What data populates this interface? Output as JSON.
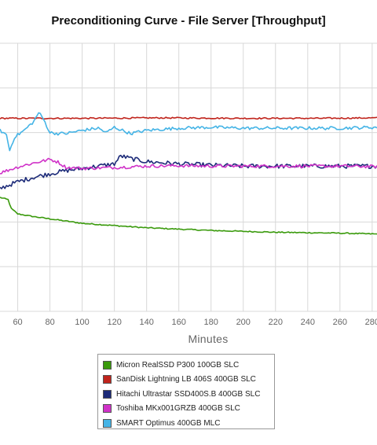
{
  "chart_data": {
    "type": "line",
    "title": "Preconditioning Curve - File Server [Throughput]",
    "xlabel": "Minutes",
    "ylabel": "",
    "xlim": [
      49,
      283
    ],
    "x_ticks": [
      60,
      80,
      100,
      120,
      140,
      160,
      180,
      200,
      220,
      240,
      260,
      280
    ],
    "ylim": [
      0,
      6
    ],
    "grid": true,
    "legend_position": "bottom",
    "series": [
      {
        "name": "Micron RealSSD P300 100GB SLC",
        "color": "#3a9a0c",
        "x": [
          49,
          54,
          56,
          60,
          70,
          80,
          90,
          100,
          120,
          140,
          160,
          180,
          200,
          220,
          240,
          260,
          283
        ],
        "y": [
          2.55,
          2.5,
          2.3,
          2.18,
          2.12,
          2.07,
          2.02,
          1.97,
          1.92,
          1.87,
          1.84,
          1.81,
          1.79,
          1.77,
          1.76,
          1.75,
          1.73
        ],
        "noise": 0.012
      },
      {
        "name": "SanDisk Lightning LB 406S 400GB SLC",
        "color": "#c0241c",
        "x": [
          49,
          100,
          150,
          200,
          250,
          283
        ],
        "y": [
          4.32,
          4.32,
          4.33,
          4.32,
          4.32,
          4.33
        ],
        "noise": 0.015
      },
      {
        "name": "Hitachi Ultrastar SSD400S.B 400GB SLC",
        "color": "#1c2a78",
        "x": [
          49,
          60,
          70,
          80,
          90,
          100,
          110,
          120,
          124,
          130,
          140,
          160,
          180,
          200,
          220,
          240,
          260,
          283
        ],
        "y": [
          2.75,
          2.9,
          3.0,
          3.08,
          3.15,
          3.2,
          3.25,
          3.3,
          3.48,
          3.42,
          3.35,
          3.3,
          3.27,
          3.25,
          3.25,
          3.25,
          3.25,
          3.25
        ],
        "noise": 0.05
      },
      {
        "name": "Toshiba MKx001GRZB 400GB SLC",
        "color": "#d032c8",
        "x": [
          49,
          60,
          70,
          80,
          85,
          90,
          100,
          120,
          140,
          160,
          180,
          200,
          220,
          240,
          260,
          283
        ],
        "y": [
          3.1,
          3.23,
          3.32,
          3.4,
          3.34,
          3.22,
          3.2,
          3.22,
          3.25,
          3.26,
          3.25,
          3.25,
          3.25,
          3.25,
          3.25,
          3.24
        ],
        "noise": 0.035
      },
      {
        "name": "SMART Optimus 400GB MLC",
        "color": "#45b4e6",
        "x": [
          49,
          53,
          55,
          58,
          64,
          70,
          73,
          76,
          80,
          85,
          90,
          100,
          110,
          115,
          120,
          130,
          140,
          160,
          180,
          200,
          220,
          240,
          260,
          283
        ],
        "y": [
          4.05,
          3.95,
          3.6,
          3.9,
          4.05,
          4.25,
          4.45,
          4.3,
          4.0,
          3.98,
          3.98,
          4.05,
          4.1,
          4.0,
          4.12,
          3.98,
          4.05,
          4.1,
          4.12,
          4.1,
          4.1,
          4.1,
          4.1,
          4.12
        ],
        "noise": 0.035
      }
    ]
  }
}
